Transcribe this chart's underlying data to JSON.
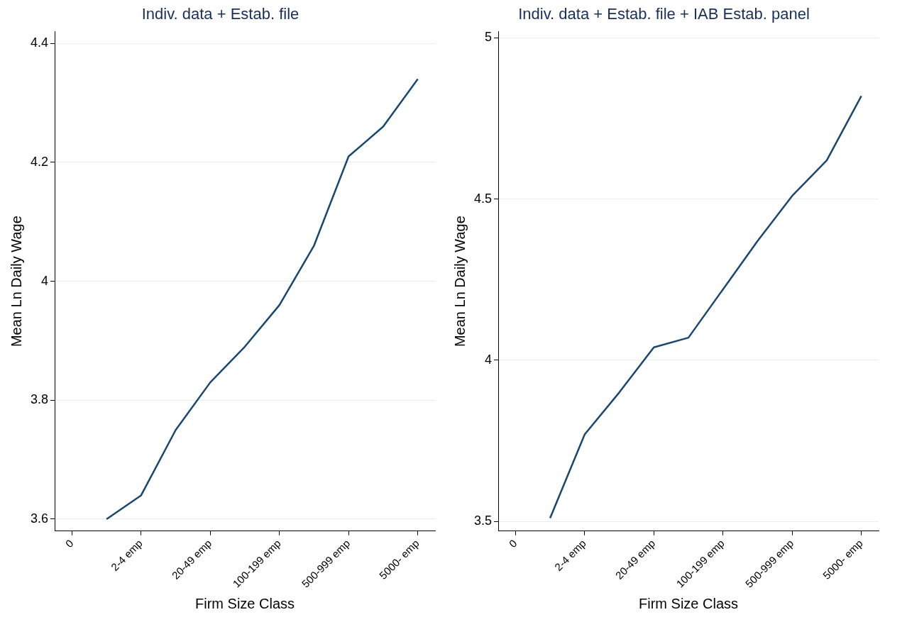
{
  "chart_data": [
    {
      "type": "line",
      "title": "Indiv. data + Estab. file",
      "xlabel": "Firm Size Class",
      "ylabel": "Mean Ln Daily Wage",
      "categories": [
        "0",
        null,
        "2-4 emp",
        null,
        "20-49 emp",
        null,
        "100-199 emp",
        null,
        "500-999 emp",
        null,
        "5000- emp"
      ],
      "values": [
        null,
        3.6,
        3.64,
        3.75,
        3.83,
        3.89,
        3.96,
        4.06,
        4.21,
        4.26,
        4.34
      ],
      "color": "#1a476f",
      "ylim": [
        3.58,
        4.42
      ],
      "yticks": [
        3.6,
        3.8,
        4,
        4.2,
        4.4
      ],
      "grid": "y",
      "marker": "none"
    },
    {
      "type": "line",
      "title": "Indiv. data + Estab. file + IAB Estab. panel",
      "xlabel": "Firm Size Class",
      "ylabel": "Mean Ln Daily Wage",
      "categories": [
        "0",
        null,
        "2-4 emp",
        null,
        "20-49 emp",
        null,
        "100-199 emp",
        null,
        "500-999 emp",
        null,
        "5000- emp"
      ],
      "values": [
        null,
        3.51,
        3.77,
        3.9,
        4.04,
        4.07,
        4.22,
        4.37,
        4.51,
        4.62,
        4.82
      ],
      "color": "#1a476f",
      "ylim": [
        3.47,
        5.02
      ],
      "yticks": [
        3.5,
        4,
        4.5,
        5
      ],
      "grid": "y",
      "marker": "none"
    }
  ]
}
